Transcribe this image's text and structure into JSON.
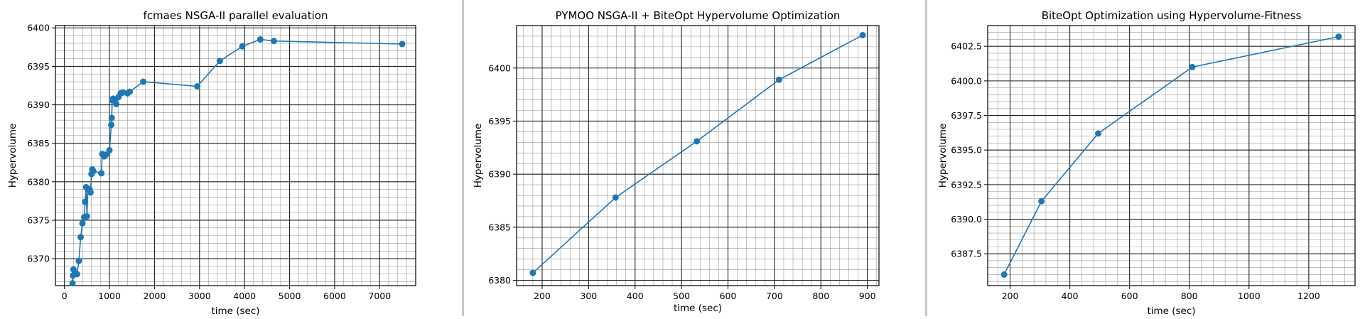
{
  "colors": {
    "series": "#1f77b4",
    "major_grid": "#222222",
    "minor_grid": "#9a9a9a",
    "separator": "#c8c8c8"
  },
  "chart_data": [
    {
      "type": "line",
      "title": "fcmaes NSGA-II parallel evaluation",
      "xlabel": "time (sec)",
      "ylabel": "Hypervolume",
      "xlim": [
        -200,
        7800
      ],
      "ylim": [
        6366.5,
        6400.3
      ],
      "xticks": [
        0,
        1000,
        2000,
        3000,
        4000,
        5000,
        6000,
        7000
      ],
      "yticks": [
        6370,
        6375,
        6380,
        6385,
        6390,
        6395,
        6400
      ],
      "grid": true,
      "marker": "circle",
      "series": [
        {
          "x": [
            180,
            190,
            200,
            230,
            280,
            320,
            360,
            400,
            440,
            460,
            480,
            500,
            520,
            560,
            580,
            600,
            620,
            640,
            820,
            840,
            880,
            920,
            1000,
            1040,
            1050,
            1060,
            1080,
            1100,
            1150,
            1200,
            1250,
            1300,
            1400,
            1450,
            1750,
            2950,
            3450,
            3950,
            4350,
            4650,
            7500
          ],
          "y": [
            6366.8,
            6367.8,
            6368.6,
            6368.1,
            6368.0,
            6369.7,
            6372.8,
            6374.6,
            6375.4,
            6377.4,
            6379.3,
            6375.5,
            6379.1,
            6379.0,
            6378.6,
            6381.0,
            6381.6,
            6381.4,
            6381.1,
            6383.6,
            6383.3,
            6383.5,
            6384.1,
            6387.4,
            6388.3,
            6390.6,
            6390.8,
            6390.7,
            6390.1,
            6391.0,
            6391.5,
            6391.6,
            6391.5,
            6391.7,
            6393.0,
            6392.4,
            6395.7,
            6397.6,
            6398.5,
            6398.3,
            6397.9
          ]
        }
      ]
    },
    {
      "type": "line",
      "title": "PYMOO NSGA-II + BiteOpt Hypervolume Optimization",
      "xlabel": "time (sec)",
      "ylabel": "Hypervolume",
      "xlim": [
        145,
        925
      ],
      "ylim": [
        6379.5,
        6404.0
      ],
      "xticks": [
        200,
        300,
        400,
        500,
        600,
        700,
        800,
        900
      ],
      "yticks": [
        6380,
        6385,
        6390,
        6395,
        6400
      ],
      "grid": true,
      "marker": "circle",
      "series": [
        {
          "x": [
            180,
            358,
            533,
            710,
            890
          ],
          "y": [
            6380.7,
            6387.8,
            6393.1,
            6398.9,
            6403.1
          ]
        }
      ]
    },
    {
      "type": "line",
      "title": "BiteOpt Optimization using Hypervolume-Fitness",
      "xlabel": "time (sec)",
      "ylabel": "Hypervolume",
      "xlim": [
        125,
        1355
      ],
      "ylim": [
        6385.2,
        6404.0
      ],
      "xticks": [
        200,
        400,
        600,
        800,
        1000,
        1200
      ],
      "yticklabels": [
        "6387.5",
        "6390.0",
        "6392.5",
        "6395.0",
        "6397.5",
        "6400.0",
        "6402.5"
      ],
      "grid": true,
      "marker": "circle",
      "series": [
        {
          "x": [
            180,
            305,
            495,
            810,
            1300
          ],
          "y": [
            6386.0,
            6391.3,
            6396.2,
            6401.0,
            6403.2
          ]
        }
      ]
    }
  ]
}
